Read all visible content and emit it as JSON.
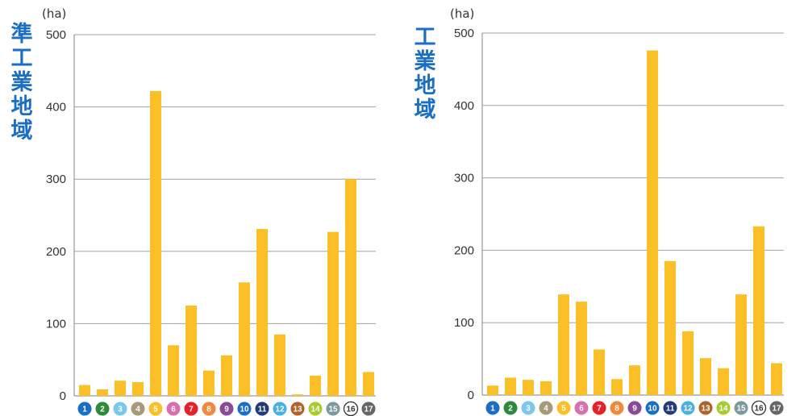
{
  "chart_data": [
    {
      "type": "bar",
      "title": "準工業地域",
      "title_chars": [
        "準",
        "工",
        "業",
        "地",
        "域"
      ],
      "unit": "(ha)",
      "ylim": [
        0,
        500
      ],
      "yticks": [
        0,
        100,
        200,
        300,
        400,
        500
      ],
      "grid": true,
      "bar_color": "#fbbf28",
      "categories": [
        "1",
        "2",
        "3",
        "4",
        "5",
        "6",
        "7",
        "8",
        "9",
        "10",
        "11",
        "12",
        "13",
        "14",
        "15",
        "16",
        "17"
      ],
      "values": [
        15,
        9,
        21,
        19,
        422,
        70,
        125,
        35,
        56,
        157,
        231,
        85,
        2,
        28,
        227,
        300,
        33
      ]
    },
    {
      "type": "bar",
      "title": "工業地域",
      "title_chars": [
        "工",
        "業",
        "地",
        "域"
      ],
      "unit": "(ha)",
      "ylim": [
        0,
        500
      ],
      "yticks": [
        0,
        100,
        200,
        300,
        400,
        500
      ],
      "grid": true,
      "bar_color": "#fbbf28",
      "categories": [
        "1",
        "2",
        "3",
        "4",
        "5",
        "6",
        "7",
        "8",
        "9",
        "10",
        "11",
        "12",
        "13",
        "14",
        "15",
        "16",
        "17"
      ],
      "values": [
        13,
        24,
        21,
        19,
        139,
        129,
        63,
        22,
        41,
        476,
        185,
        88,
        51,
        37,
        139,
        233,
        44
      ]
    }
  ],
  "category_colors": [
    "#1a6fc4",
    "#2e8a3a",
    "#7cc8ec",
    "#a89a78",
    "#fbbf28",
    "#d870b0",
    "#e52229",
    "#ef8a3c",
    "#8a4a9a",
    "#1a6fc4",
    "#233a7a",
    "#4ab0e0",
    "#b0622a",
    "#a8cc30",
    "#7a9aa0",
    "#ffffff",
    "#666666"
  ]
}
